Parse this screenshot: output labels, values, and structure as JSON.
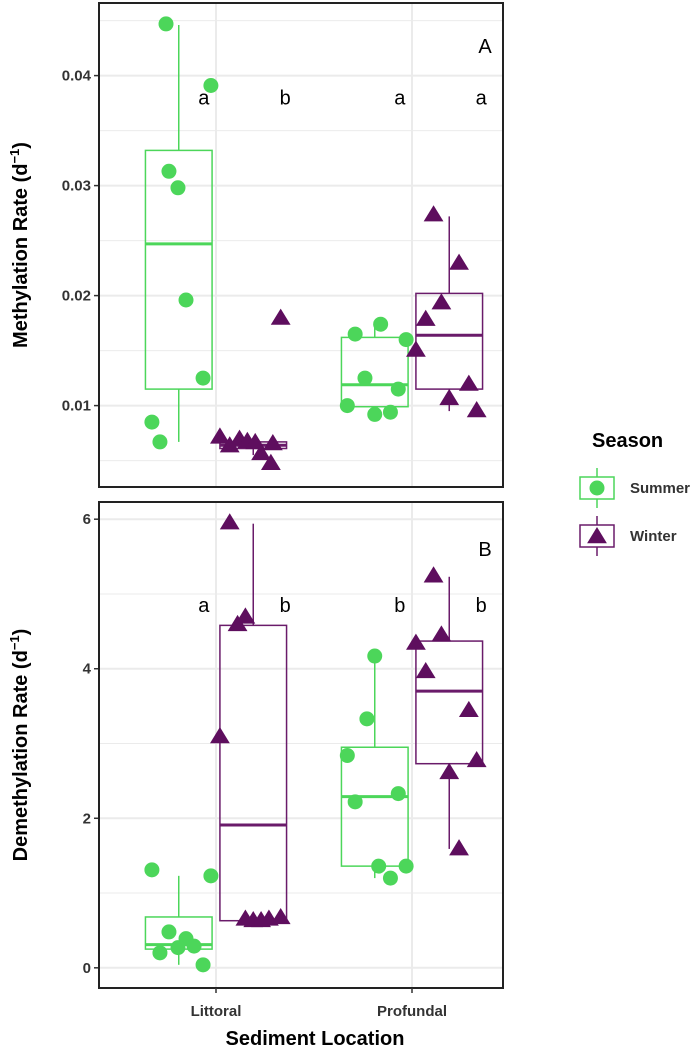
{
  "chart_data": [
    {
      "type": "box",
      "panel_label": "A",
      "ylabel": {
        "text": "Methylation Rate (d",
        "sup": "−1",
        "close": ")"
      },
      "ylim": [
        0.0026,
        0.0466
      ],
      "yticks": [
        0.01,
        0.02,
        0.03,
        0.04
      ],
      "ytick_labels": [
        "0.01",
        "0.02",
        "0.03",
        "0.04"
      ],
      "letters": [
        "a",
        "b",
        "a",
        "a"
      ],
      "letter_y": 0.038,
      "groups": [
        {
          "category": "Littoral",
          "season": "Summer",
          "box": {
            "low": 0.0067,
            "q1": 0.0115,
            "median": 0.0247,
            "q3": 0.0332,
            "high": 0.0446
          },
          "points": [
            [
              0.745,
              0.0447
            ],
            [
              0.974,
              0.0391
            ],
            [
              0.76,
              0.0313
            ],
            [
              0.806,
              0.0298
            ],
            [
              0.847,
              0.0196
            ],
            [
              0.934,
              0.0125
            ],
            [
              0.673,
              0.0085
            ],
            [
              0.714,
              0.0067
            ]
          ]
        },
        {
          "category": "Littoral",
          "season": "Winter",
          "box": {
            "low": 0.0055,
            "q1": 0.0061,
            "median": 0.0064,
            "q3": 0.0067,
            "high": 0.007
          },
          "points": [
            [
              1.02,
              0.0072
            ],
            [
              1.07,
              0.0064
            ],
            [
              1.12,
              0.007
            ],
            [
              1.16,
              0.0068
            ],
            [
              1.2,
              0.0067
            ],
            [
              1.23,
              0.0057
            ],
            [
              1.28,
              0.0048
            ],
            [
              1.33,
              0.018
            ],
            [
              1.29,
              0.0066
            ]
          ]
        },
        {
          "category": "Profundal",
          "season": "Summer",
          "box": {
            "low": 0.0092,
            "q1": 0.0099,
            "median": 0.0119,
            "q3": 0.0162,
            "high": 0.0174
          },
          "points": [
            [
              1.71,
              0.0165
            ],
            [
              1.84,
              0.0174
            ],
            [
              1.97,
              0.016
            ],
            [
              1.76,
              0.0125
            ],
            [
              1.93,
              0.0115
            ],
            [
              1.67,
              0.01
            ],
            [
              1.81,
              0.0092
            ],
            [
              1.89,
              0.0094
            ]
          ]
        },
        {
          "category": "Profundal",
          "season": "Winter",
          "box": {
            "low": 0.0095,
            "q1": 0.0115,
            "median": 0.0164,
            "q3": 0.0202,
            "high": 0.0272
          },
          "points": [
            [
              2.11,
              0.0274
            ],
            [
              2.24,
              0.023
            ],
            [
              2.15,
              0.0194
            ],
            [
              2.07,
              0.0179
            ],
            [
              2.02,
              0.0151
            ],
            [
              2.29,
              0.012
            ],
            [
              2.19,
              0.0107
            ],
            [
              2.33,
              0.0096
            ]
          ]
        }
      ]
    },
    {
      "type": "box",
      "panel_label": "B",
      "ylabel": {
        "text": "Demethylation Rate (d",
        "sup": "−1",
        "close": ")"
      },
      "ylim": [
        -0.27,
        6.23
      ],
      "yticks": [
        0,
        2,
        4,
        6
      ],
      "ytick_labels": [
        "0",
        "2",
        "4",
        "6"
      ],
      "letters": [
        "a",
        "b",
        "b",
        "b"
      ],
      "letter_y": 4.85,
      "groups": [
        {
          "category": "Littoral",
          "season": "Summer",
          "box": {
            "low": 0.04,
            "q1": 0.25,
            "median": 0.31,
            "q3": 0.68,
            "high": 1.23
          },
          "points": [
            [
              0.673,
              1.31
            ],
            [
              0.974,
              1.23
            ],
            [
              0.76,
              0.48
            ],
            [
              0.847,
              0.39
            ],
            [
              0.806,
              0.27
            ],
            [
              0.888,
              0.29
            ],
            [
              0.714,
              0.2
            ],
            [
              0.934,
              0.04
            ]
          ]
        },
        {
          "category": "Littoral",
          "season": "Winter",
          "box": {
            "low": 0.63,
            "q1": 0.63,
            "median": 1.91,
            "q3": 4.58,
            "high": 5.94
          },
          "points": [
            [
              1.07,
              5.96
            ],
            [
              1.15,
              4.7
            ],
            [
              1.11,
              4.6
            ],
            [
              1.02,
              3.1
            ],
            [
              1.19,
              0.64
            ],
            [
              1.23,
              0.64
            ],
            [
              1.27,
              0.66
            ],
            [
              1.33,
              0.68
            ],
            [
              1.15,
              0.66
            ]
          ]
        },
        {
          "category": "Profundal",
          "season": "Summer",
          "box": {
            "low": 1.2,
            "q1": 1.36,
            "median": 2.29,
            "q3": 2.95,
            "high": 4.17
          },
          "points": [
            [
              1.81,
              4.17
            ],
            [
              1.77,
              3.33
            ],
            [
              1.67,
              2.84
            ],
            [
              1.71,
              2.22
            ],
            [
              1.93,
              2.33
            ],
            [
              1.83,
              1.36
            ],
            [
              1.89,
              1.2
            ],
            [
              1.97,
              1.36
            ]
          ]
        },
        {
          "category": "Profundal",
          "season": "Winter",
          "box": {
            "low": 1.59,
            "q1": 2.73,
            "median": 3.7,
            "q3": 4.37,
            "high": 5.23
          },
          "points": [
            [
              2.11,
              5.25
            ],
            [
              2.15,
              4.46
            ],
            [
              2.02,
              4.35
            ],
            [
              2.07,
              3.97
            ],
            [
              2.29,
              3.45
            ],
            [
              2.33,
              2.78
            ],
            [
              2.19,
              2.62
            ],
            [
              2.24,
              1.6
            ]
          ]
        }
      ]
    }
  ],
  "categories": [
    "Littoral",
    "Profundal"
  ],
  "xlabel": "Sediment Location",
  "legend": {
    "title": "Season",
    "placement": "right",
    "entries": [
      {
        "label": "Summer",
        "color": "#4cd65a",
        "shape": "circle"
      },
      {
        "label": "Winter",
        "color": "#5e0e5e",
        "shape": "triangle"
      }
    ]
  }
}
